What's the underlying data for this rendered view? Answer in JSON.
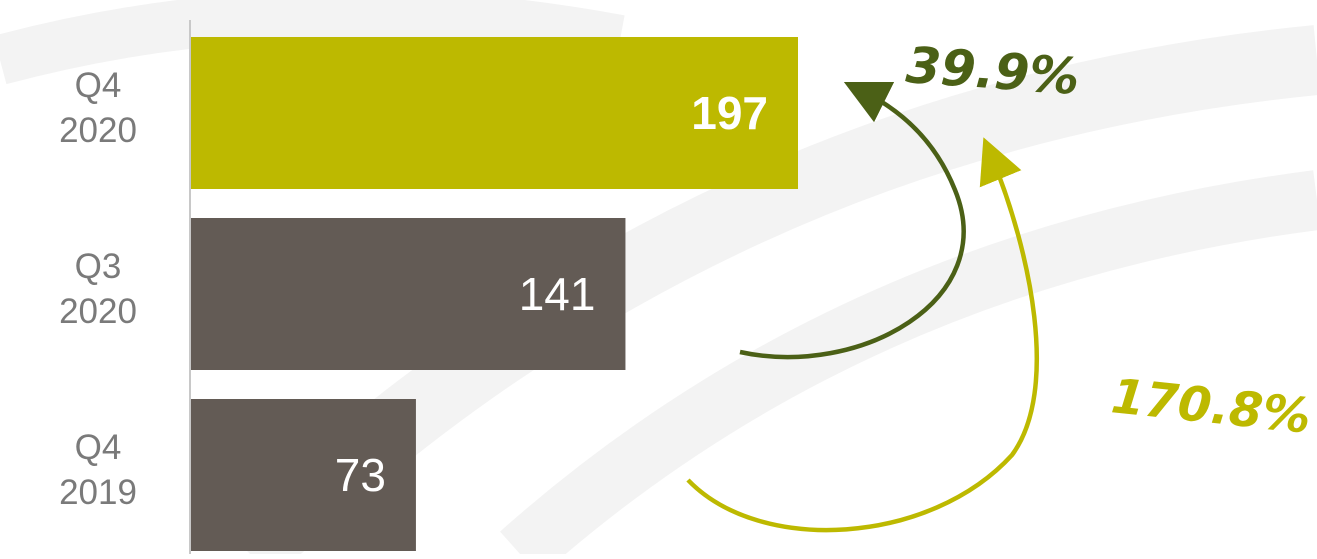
{
  "chart_data": {
    "type": "bar",
    "orientation": "horizontal",
    "categories": [
      [
        "Q4",
        "2020"
      ],
      [
        "Q3",
        "2020"
      ],
      [
        "Q4",
        "2019"
      ]
    ],
    "values": [
      197,
      141,
      73
    ],
    "value_labels": [
      "197",
      "141",
      "73"
    ],
    "highlight_index": 0,
    "colors": {
      "highlight": "#bdb900",
      "default": "#635b55",
      "axis": "#c8c8c8",
      "watermark": "#f3f3f3"
    },
    "xlim": [
      0,
      197
    ],
    "grid": false,
    "annotations": [
      {
        "text": "39.9%",
        "from": "Q3 2020",
        "to": "Q4 2020",
        "color": "#4b6016"
      },
      {
        "text": "170.8%",
        "from": "Q4 2019",
        "to": "Q4 2020",
        "color": "#bdb900"
      }
    ]
  }
}
